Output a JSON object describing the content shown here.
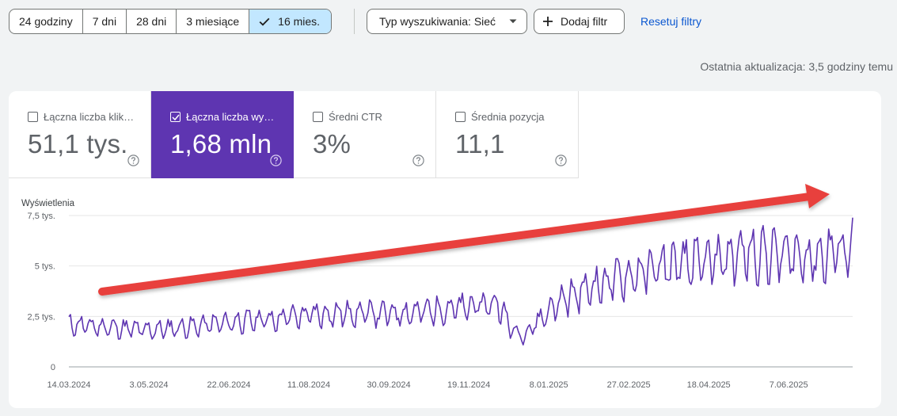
{
  "date_ranges": [
    {
      "label": "24 godziny",
      "active": false
    },
    {
      "label": "7 dni",
      "active": false
    },
    {
      "label": "28 dni",
      "active": false
    },
    {
      "label": "3 miesiące",
      "active": false
    },
    {
      "label": "16 mies.",
      "active": true
    }
  ],
  "filters": {
    "search_type_label": "Typ wyszukiwania: Sieć",
    "add_filter_label": "Dodaj filtr",
    "reset_label": "Resetuj filtry"
  },
  "last_update": "Ostatnia aktualizacja: 3,5 godziny temu",
  "metrics": [
    {
      "label": "Łączna liczba klik…",
      "value": "51,1 tys.",
      "checked": false
    },
    {
      "label": "Łączna liczba wy…",
      "value": "1,68 mln",
      "checked": true
    },
    {
      "label": "Średni CTR",
      "value": "3%",
      "checked": false
    },
    {
      "label": "Średnia pozycja",
      "value": "11,1",
      "checked": false
    }
  ],
  "colors": {
    "accent": "#5e35b1",
    "selected_range": "#c2e7ff",
    "link": "#0b57d0",
    "arrow": "#e8413c"
  },
  "icons": [
    "check-icon",
    "dropdown-arrow-icon",
    "plus-icon",
    "checkbox-icon",
    "help-icon",
    "trend-arrow-icon"
  ],
  "chart_data": {
    "type": "line",
    "ylabel": "Wyświetlenia",
    "y_ticks": [
      "0",
      "2,5 tys.",
      "5 tys.",
      "7,5 tys."
    ],
    "ylim": [
      0,
      7500
    ],
    "x_ticks": [
      "14.03.2024",
      "3.05.2024",
      "22.06.2024",
      "11.08.2024",
      "30.09.2024",
      "19.11.2024",
      "8.01.2025",
      "27.02.2025",
      "18.04.2025",
      "7.06.2025"
    ],
    "x_start": "2024-03-14",
    "x_end": "2025-07-17",
    "grid": true,
    "legend": "none",
    "series": [
      {
        "color": "#5e35b1",
        "anchors": [
          {
            "date": "2024-03-14",
            "value": 2200
          },
          {
            "date": "2024-04-15",
            "value": 2000
          },
          {
            "date": "2024-05-03",
            "value": 1900
          },
          {
            "date": "2024-06-01",
            "value": 2100
          },
          {
            "date": "2024-06-22",
            "value": 2300
          },
          {
            "date": "2024-07-20",
            "value": 2500
          },
          {
            "date": "2024-08-11",
            "value": 2700
          },
          {
            "date": "2024-09-10",
            "value": 2800
          },
          {
            "date": "2024-09-30",
            "value": 2750
          },
          {
            "date": "2024-10-25",
            "value": 2900
          },
          {
            "date": "2024-11-19",
            "value": 3100
          },
          {
            "date": "2024-12-08",
            "value": 3300
          },
          {
            "date": "2024-12-15",
            "value": 2000
          },
          {
            "date": "2024-12-23",
            "value": 1600
          },
          {
            "date": "2024-12-30",
            "value": 2200
          },
          {
            "date": "2025-01-15",
            "value": 3400
          },
          {
            "date": "2025-02-05",
            "value": 4200
          },
          {
            "date": "2025-02-27",
            "value": 4700
          },
          {
            "date": "2025-03-20",
            "value": 5200
          },
          {
            "date": "2025-04-18",
            "value": 5400
          },
          {
            "date": "2025-05-10",
            "value": 5900
          },
          {
            "date": "2025-06-07",
            "value": 5800
          },
          {
            "date": "2025-06-25",
            "value": 5700
          },
          {
            "date": "2025-07-17",
            "value": 6300
          }
        ]
      }
    ]
  }
}
